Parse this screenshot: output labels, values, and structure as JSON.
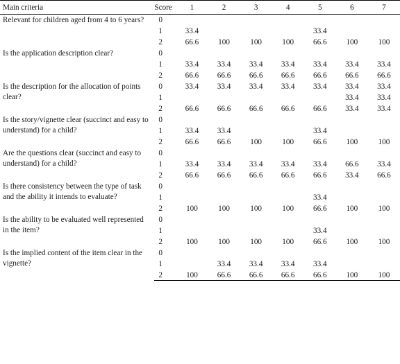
{
  "header": {
    "main_criteria": "Main criteria",
    "score": "Score",
    "columns": [
      "1",
      "2",
      "3",
      "4",
      "5",
      "6",
      "7"
    ]
  },
  "groups": [
    {
      "criterion": "Relevant for children aged from 4 to 6 years?",
      "rows": [
        {
          "score": "0",
          "values": [
            "",
            "",
            "",
            "",
            "",
            "",
            ""
          ]
        },
        {
          "score": "1",
          "values": [
            "33.4",
            "",
            "",
            "",
            "33.4",
            "",
            ""
          ]
        },
        {
          "score": "2",
          "values": [
            "66.6",
            "100",
            "100",
            "100",
            "66.6",
            "100",
            "100"
          ]
        }
      ]
    },
    {
      "criterion": "Is the application description clear?",
      "rows": [
        {
          "score": "0",
          "values": [
            "",
            "",
            "",
            "",
            "",
            "",
            ""
          ]
        },
        {
          "score": "1",
          "values": [
            "33.4",
            "33.4",
            "33.4",
            "33.4",
            "33.4",
            "33.4",
            "33.4"
          ]
        },
        {
          "score": "2",
          "values": [
            "66.6",
            "66.6",
            "66.6",
            "66.6",
            "66.6",
            "66.6",
            "66.6"
          ]
        }
      ]
    },
    {
      "criterion": "Is the description for the allocation of points clear?",
      "rows": [
        {
          "score": "0",
          "values": [
            "33.4",
            "33.4",
            "33.4",
            "33.4",
            "33.4",
            "33.4",
            "33.4"
          ]
        },
        {
          "score": "1",
          "values": [
            "",
            "",
            "",
            "",
            "",
            "33.4",
            "33.4"
          ]
        },
        {
          "score": "2",
          "values": [
            "66.6",
            "66.6",
            "66.6",
            "66.6",
            "66.6",
            "33.4",
            "33.4"
          ]
        }
      ]
    },
    {
      "criterion": "Is the story/vignette clear (succinct and easy to understand) for a child?",
      "rows": [
        {
          "score": "0",
          "values": [
            "",
            "",
            "",
            "",
            "",
            "",
            ""
          ]
        },
        {
          "score": "1",
          "values": [
            "33.4",
            "33.4",
            "",
            "",
            "33.4",
            "",
            ""
          ]
        },
        {
          "score": "2",
          "values": [
            "66.6",
            "66.6",
            "100",
            "100",
            "66.6",
            "100",
            "100"
          ]
        }
      ]
    },
    {
      "criterion": "Are the questions clear (succinct and easy to understand) for a child?",
      "rows": [
        {
          "score": "0",
          "values": [
            "",
            "",
            "",
            "",
            "",
            "",
            ""
          ]
        },
        {
          "score": "1",
          "values": [
            "33.4",
            "33.4",
            "33.4",
            "33.4",
            "33.4",
            "66.6",
            "33.4"
          ]
        },
        {
          "score": "2",
          "values": [
            "66.6",
            "66.6",
            "66.6",
            "66.6",
            "66.6",
            "33.4",
            "66.6"
          ]
        }
      ]
    },
    {
      "criterion": "Is there consistency between the type of task and the ability it intends to evaluate?",
      "rows": [
        {
          "score": "0",
          "values": [
            "",
            "",
            "",
            "",
            "",
            "",
            ""
          ]
        },
        {
          "score": "1",
          "values": [
            "",
            "",
            "",
            "",
            "33.4",
            "",
            ""
          ]
        },
        {
          "score": "2",
          "values": [
            "100",
            "100",
            "100",
            "100",
            "66.6",
            "100",
            "100"
          ]
        }
      ]
    },
    {
      "criterion": "Is the ability to be evaluated well represented in the item?",
      "rows": [
        {
          "score": "0",
          "values": [
            "",
            "",
            "",
            "",
            "",
            "",
            ""
          ]
        },
        {
          "score": "1",
          "values": [
            "",
            "",
            "",
            "",
            "33.4",
            "",
            ""
          ]
        },
        {
          "score": "2",
          "values": [
            "100",
            "100",
            "100",
            "100",
            "66.6",
            "100",
            "100"
          ]
        }
      ]
    },
    {
      "criterion": "Is the implied content of the item clear in the vignette?",
      "rows": [
        {
          "score": "0",
          "values": [
            "",
            "",
            "",
            "",
            "",
            "",
            ""
          ]
        },
        {
          "score": "1",
          "values": [
            "",
            "33.4",
            "33.4",
            "33.4",
            "33.4",
            "",
            ""
          ]
        },
        {
          "score": "2",
          "values": [
            "100",
            "66.6",
            "66.6",
            "66.6",
            "66.6",
            "100",
            "100"
          ]
        }
      ]
    }
  ]
}
